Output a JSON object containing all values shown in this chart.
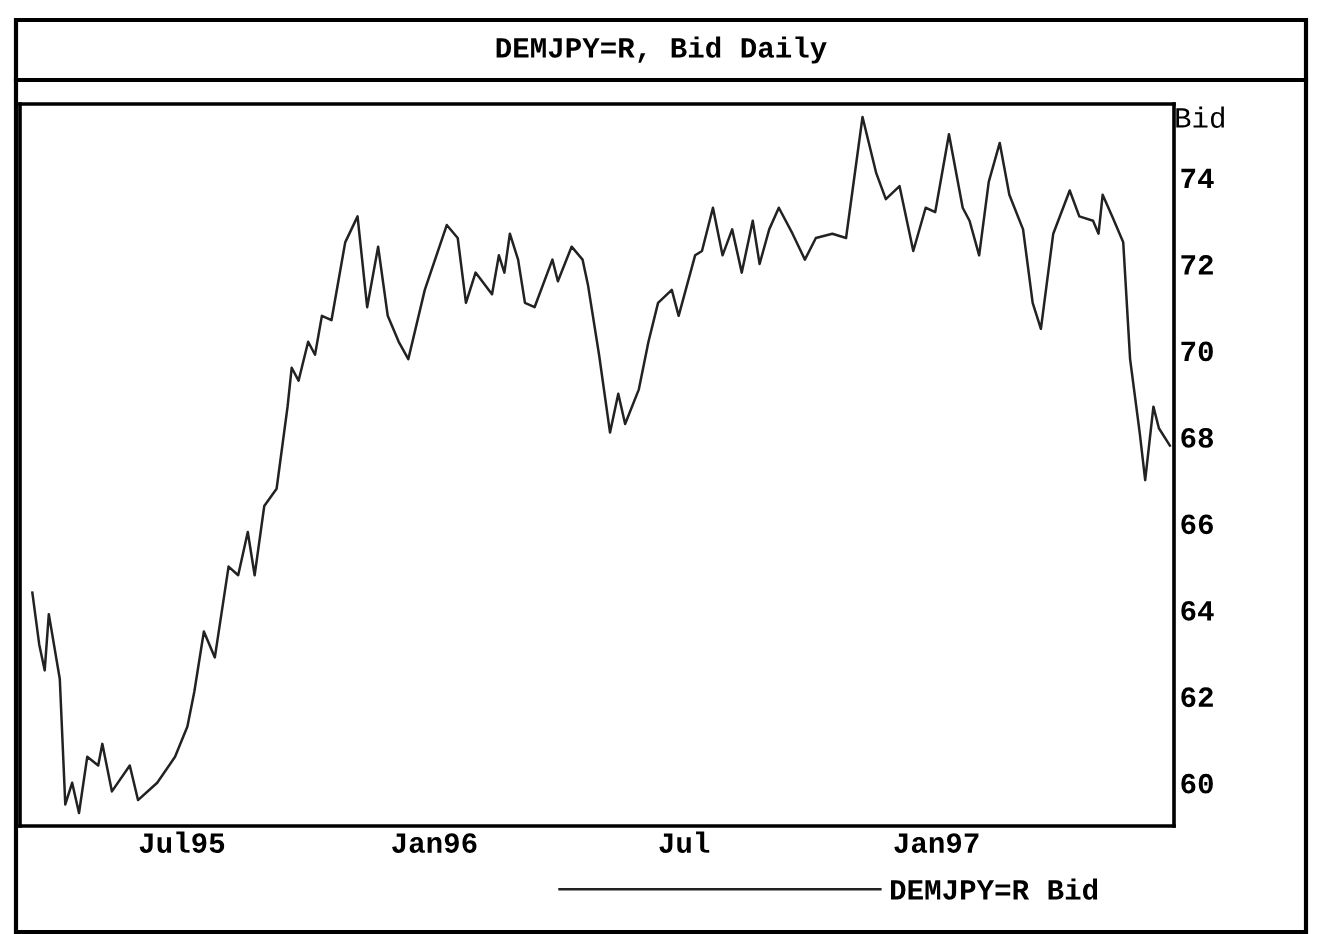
{
  "chart_data": {
    "type": "line",
    "title": "DEMJPY=R, Bid Daily",
    "ylabel": "Bid",
    "series": [
      {
        "name": "DEMJPY=R Bid",
        "color": "#222222",
        "x": [
          "1995-03-14",
          "1995-03-19",
          "1995-03-23",
          "1995-03-26",
          "1995-04-03",
          "1995-04-07",
          "1995-04-12",
          "1995-04-17",
          "1995-04-23",
          "1995-05-01",
          "1995-05-04",
          "1995-05-11",
          "1995-05-24",
          "1995-05-30",
          "1995-06-13",
          "1995-06-26",
          "1995-07-05",
          "1995-07-10",
          "1995-07-17",
          "1995-07-25",
          "1995-08-04",
          "1995-08-11",
          "1995-08-18",
          "1995-08-23",
          "1995-08-30",
          "1995-09-08",
          "1995-09-16",
          "1995-09-19",
          "1995-09-24",
          "1995-10-01",
          "1995-10-06",
          "1995-10-11",
          "1995-10-18",
          "1995-10-28",
          "1995-11-06",
          "1995-11-13",
          "1995-11-21",
          "1995-11-28",
          "1995-12-06",
          "1995-12-13",
          "1995-12-25",
          "1996-01-10",
          "1996-01-18",
          "1996-01-24",
          "1996-01-31",
          "1996-02-12",
          "1996-02-17",
          "1996-02-21",
          "1996-02-25",
          "1996-03-02",
          "1996-03-07",
          "1996-03-14",
          "1996-03-27",
          "1996-03-31",
          "1996-04-10",
          "1996-04-18",
          "1996-04-22",
          "1996-04-30",
          "1996-05-08",
          "1996-05-14",
          "1996-05-19",
          "1996-05-29",
          "1996-06-05",
          "1996-06-12",
          "1996-06-22",
          "1996-06-27",
          "1996-07-09",
          "1996-07-14",
          "1996-07-22",
          "1996-07-29",
          "1996-08-05",
          "1996-08-12",
          "1996-08-20",
          "1996-08-25",
          "1996-09-01",
          "1996-09-08",
          "1996-09-18",
          "1996-09-27",
          "1996-10-05",
          "1996-10-17",
          "1996-10-27",
          "1996-11-08",
          "1996-11-18",
          "1996-11-25",
          "1996-12-05",
          "1996-12-15",
          "1996-12-24",
          "1996-12-31",
          "1997-01-10",
          "1997-01-20",
          "1997-01-25",
          "1997-02-01",
          "1997-02-08",
          "1997-02-16",
          "1997-02-23",
          "1997-03-05",
          "1997-03-12",
          "1997-03-18",
          "1997-03-27",
          "1997-04-08",
          "1997-04-15",
          "1997-04-25",
          "1997-04-29",
          "1997-05-02",
          "1997-05-09",
          "1997-05-17",
          "1997-05-22",
          "1997-05-29",
          "1997-06-02",
          "1997-06-08",
          "1997-06-12",
          "1997-06-20"
        ],
        "values": [
          64.4,
          63.2,
          62.6,
          63.9,
          62.4,
          59.5,
          60.0,
          59.3,
          60.6,
          60.4,
          60.9,
          59.8,
          60.4,
          59.6,
          60.0,
          60.6,
          61.3,
          62.1,
          63.5,
          62.9,
          65.0,
          64.8,
          65.8,
          64.8,
          66.4,
          66.8,
          68.7,
          69.6,
          69.3,
          70.2,
          69.9,
          70.8,
          70.7,
          72.5,
          73.1,
          71.0,
          72.4,
          70.8,
          70.2,
          69.8,
          71.4,
          72.9,
          72.6,
          71.1,
          71.8,
          71.3,
          72.2,
          71.8,
          72.7,
          72.1,
          71.1,
          71.0,
          72.1,
          71.6,
          72.4,
          72.1,
          71.5,
          69.9,
          68.1,
          69.0,
          68.3,
          69.1,
          70.2,
          71.1,
          71.4,
          70.8,
          72.2,
          72.3,
          73.3,
          72.2,
          72.8,
          71.8,
          73.0,
          72.0,
          72.8,
          73.3,
          72.7,
          72.1,
          72.6,
          72.7,
          72.6,
          75.4,
          74.1,
          73.5,
          73.8,
          72.3,
          73.3,
          73.2,
          75.0,
          73.3,
          73.0,
          72.2,
          73.9,
          74.8,
          73.6,
          72.8,
          71.1,
          70.5,
          72.7,
          73.7,
          73.1,
          73.0,
          72.7,
          73.6,
          73.1,
          72.5,
          69.8,
          68.1,
          67.0,
          68.7,
          68.2,
          67.8
        ]
      }
    ],
    "xlim": [
      "1995-03-05",
      "1997-06-23"
    ],
    "xticks": [
      {
        "value": "1995-07-01",
        "label": "Jul95"
      },
      {
        "value": "1996-01-01",
        "label": "Jan96"
      },
      {
        "value": "1996-07-01",
        "label": "Jul"
      },
      {
        "value": "1997-01-01",
        "label": "Jan97"
      }
    ],
    "ylim": [
      59,
      75.7
    ],
    "yticks": [
      60,
      62,
      64,
      66,
      68,
      70,
      72,
      74
    ],
    "grid": false,
    "legend": "bottom"
  }
}
